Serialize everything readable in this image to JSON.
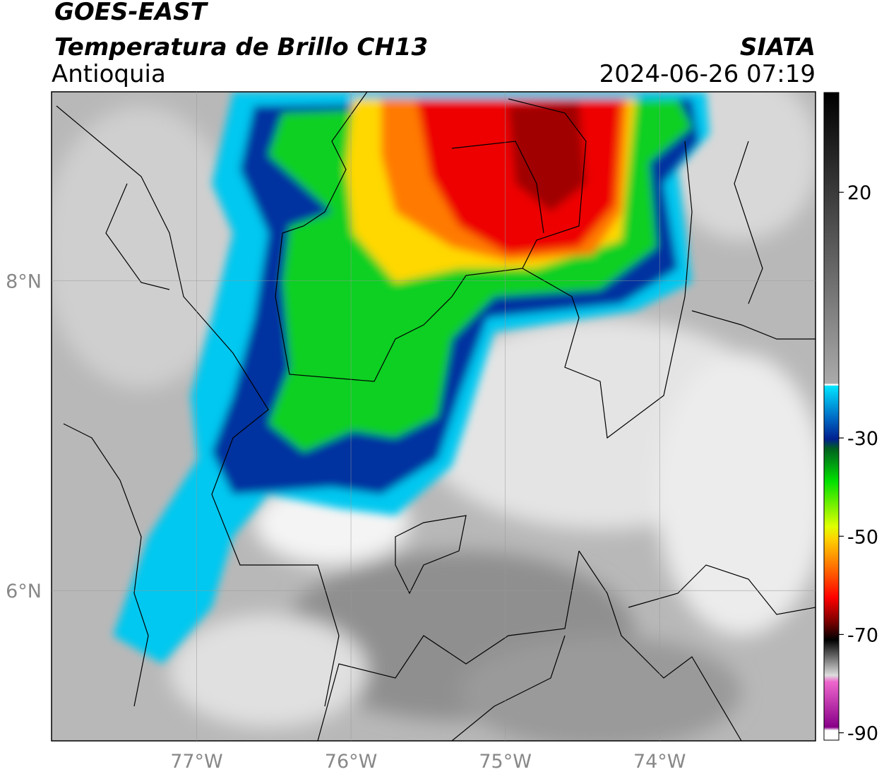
{
  "header": {
    "title": "GOES-EAST",
    "subtitle": "Temperatura de Brillo CH13",
    "region": "Antioquia",
    "source": "SIATA",
    "timestamp": "2024-06-26 07:19"
  },
  "map": {
    "xlim": [
      -77.94,
      -72.99
    ],
    "ylim": [
      5.03,
      9.22
    ],
    "xticks": [
      {
        "value": -77,
        "label": "77°W"
      },
      {
        "value": -76,
        "label": "76°W"
      },
      {
        "value": -75,
        "label": "75°W"
      },
      {
        "value": -74,
        "label": "74°W"
      }
    ],
    "yticks": [
      {
        "value": 8,
        "label": "8°N"
      },
      {
        "value": 6,
        "label": "6°N"
      }
    ]
  },
  "colorbar": {
    "lim": [
      -91.5,
      40.3
    ],
    "ticks": [
      20,
      -30,
      -50,
      -70,
      -90
    ]
  }
}
